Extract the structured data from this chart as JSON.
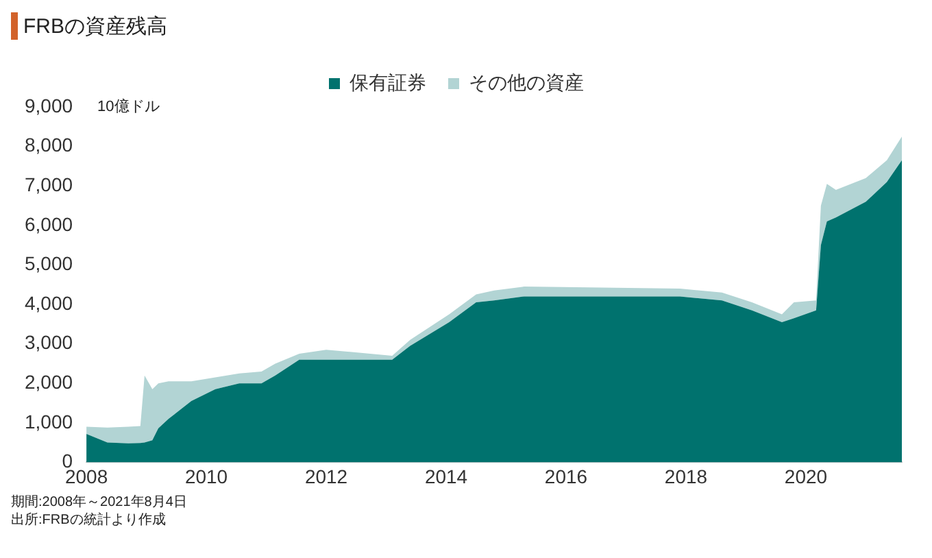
{
  "chart_data": {
    "type": "area",
    "stacked": true,
    "title": "FRBの資産残高",
    "ylabel": "10億ドル",
    "legend": "top",
    "x": [
      2008.0,
      2008.35,
      2008.7,
      2008.9,
      2008.97,
      2009.1,
      2009.2,
      2009.37,
      2009.75,
      2010.15,
      2010.55,
      2010.92,
      2011.15,
      2011.55,
      2012.0,
      2013.1,
      2013.4,
      2014.05,
      2014.5,
      2014.8,
      2015.3,
      2017.9,
      2018.6,
      2019.1,
      2019.6,
      2019.8,
      2020.17,
      2020.25,
      2020.35,
      2020.5,
      2021.0,
      2021.35,
      2021.6
    ],
    "series": [
      {
        "name": "保有証券",
        "color": "#00726e",
        "values": [
          720,
          500,
          480,
          490,
          500,
          560,
          860,
          1100,
          1550,
          1850,
          2000,
          2000,
          2200,
          2600,
          2600,
          2600,
          2950,
          3550,
          4050,
          4100,
          4200,
          4200,
          4100,
          3850,
          3550,
          3650,
          3850,
          5500,
          6100,
          6200,
          6600,
          7100,
          7650
        ]
      },
      {
        "name": "その他の資産",
        "color": "#b2d4d4",
        "values": [
          180,
          380,
          420,
          430,
          1700,
          1290,
          1140,
          950,
          500,
          300,
          250,
          300,
          300,
          150,
          250,
          100,
          150,
          200,
          200,
          250,
          250,
          200,
          200,
          200,
          200,
          400,
          250,
          1000,
          950,
          700,
          600,
          550,
          600
        ]
      }
    ],
    "xlim": [
      2008,
      2021.6
    ],
    "xticks": [
      2008,
      2010,
      2012,
      2014,
      2016,
      2018,
      2020
    ],
    "ylim": [
      0,
      9000
    ],
    "yticks": [
      0,
      {
        "value": 1000,
        "label": "1,000"
      },
      {
        "value": 2000,
        "label": "2,000"
      },
      {
        "value": 3000,
        "label": "3,000"
      },
      {
        "value": 4000,
        "label": "4,000"
      },
      {
        "value": 5000,
        "label": "5,000"
      },
      {
        "value": 6000,
        "label": "6,000"
      },
      {
        "value": 7000,
        "label": "7,000"
      },
      {
        "value": 8000,
        "label": "8,000"
      },
      {
        "value": 9000,
        "label": "9,000"
      }
    ],
    "grid": false,
    "annotations": [
      "期間:2008年～2021年8月4日",
      "出所:FRBの統計より作成"
    ]
  }
}
